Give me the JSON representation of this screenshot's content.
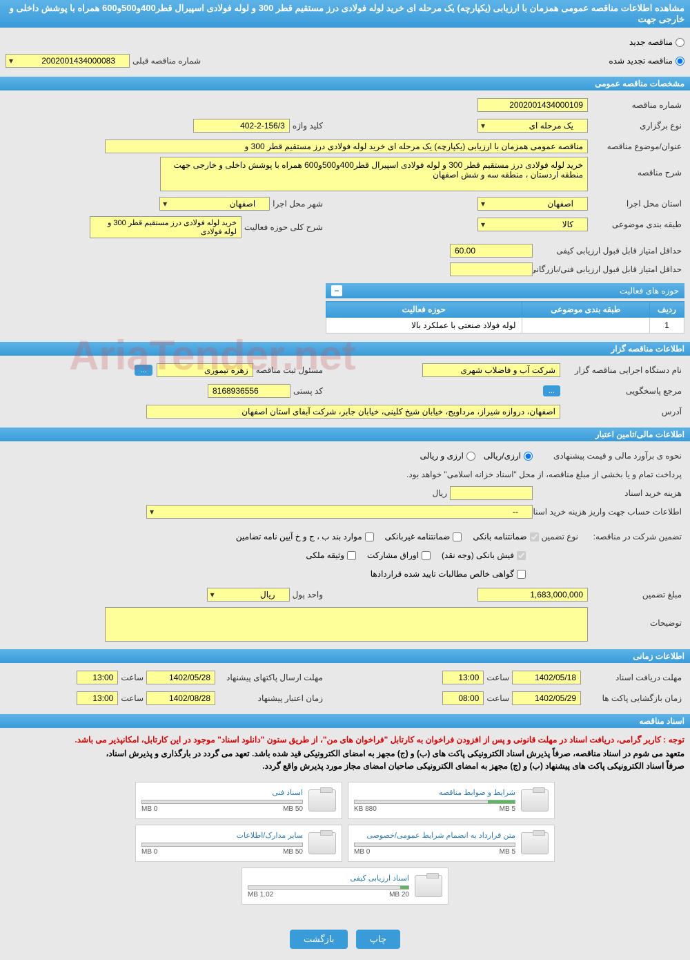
{
  "header": {
    "title": "مشاهده اطلاعات مناقصه عمومی همزمان با ارزیابی (یکپارچه) یک مرحله ای خرید لوله فولادی درز مستقیم قطر 300 و لوله فولادی اسپیرال قطر400و500و600 همراه با پوشش داخلی و خارجی جهت"
  },
  "tender_type": {
    "new_label": "مناقصه جدید",
    "renewed_label": "مناقصه تجدید شده",
    "prev_number_label": "شماره مناقصه قبلی",
    "prev_number": "2002001434000083"
  },
  "general": {
    "section_title": "مشخصات مناقصه عمومی",
    "number_label": "شماره مناقصه",
    "number": "2002001434000109",
    "type_label": "نوع برگزاری",
    "type": "یک مرحله ای",
    "keyword_label": "کلید واژه",
    "keyword": "402-2-156/3",
    "subject_label": "عنوان/موضوع مناقصه",
    "subject": "مناقصه عمومی همزمان با ارزیابی (یکپارچه) یک مرحله ای خرید لوله فولادی درز مستقیم قطر 300 و",
    "desc_label": "شرح مناقصه",
    "desc": "خرید لوله فولادی درز مستقیم قطر 300 و  لوله فولادی اسپیرال قطر400و500و600  همراه با پوشش داخلی و خارجی جهت منطقه اردستان ،  منطقه سه و شش اصفهان",
    "province_label": "استان محل اجرا",
    "province": "اصفهان",
    "city_label": "شهر محل اجرا",
    "city": "اصفهان",
    "category_label": "طبقه بندی موضوعی",
    "category": "کالا",
    "activity_desc_label": "شرح کلی حوزه فعالیت",
    "activity_desc": "خرید لوله فولادی درز مستقیم قطر 300 و  لوله فولادی",
    "min_quality_label": "حداقل امتیاز قابل قبول ارزیابی کیفی",
    "min_quality": "60.00",
    "min_tech_label": "حداقل امتیاز قابل قبول ارزیابی فنی/بازرگانی",
    "min_tech": ""
  },
  "activities": {
    "title": "حوزه های فعالیت",
    "col_row": "ردیف",
    "col_category": "طبقه بندی موضوعی",
    "col_field": "حوزه فعالیت",
    "rows": [
      {
        "n": "1",
        "category": "",
        "field": "لوله فولاد صنعتی با عملکرد بالا"
      }
    ]
  },
  "organizer": {
    "section_title": "اطلاعات مناقصه گزار",
    "org_label": "نام دستگاه اجرایی مناقصه گزار",
    "org": "شرکت آب و فاضلاب شهری",
    "registrar_label": "مسئول ثبت مناقصه",
    "registrar": "زهره تیموری",
    "response_label": "مرجع پاسخگویی",
    "postal_label": "کد پستی",
    "postal": "8168936556",
    "address_label": "آدرس",
    "address": "اصفهان، دروازه شیراز، مرداویج، خیابان شیخ کلینی، خیابان جابر، شرکت آبفای استان اصفهان"
  },
  "financial": {
    "section_title": "اطلاعات مالی/تامین اعتبار",
    "estimate_label": "نحوه ی برآورد مالی و قیمت پیشنهادی",
    "rial_option": "ارزی/ریالی",
    "currency_option": "ارزی و ریالی",
    "treasury_note": "پرداخت تمام و یا بخشی از مبلغ مناقصه، از محل \"اسناد خزانه اسلامی\" خواهد بود.",
    "doc_cost_label": "هزینه خرید اسناد",
    "doc_cost_unit": "ریال",
    "account_label": "اطلاعات حساب جهت واریز هزینه خرید اسناد",
    "account": "--",
    "guarantee_label": "تضمین شرکت در مناقصه:",
    "guarantee_type_label": "نوع تضمین",
    "g_bank": "ضمانتنامه بانکی",
    "g_nonbank": "ضمانتنامه غیربانکی",
    "g_cases": "موارد بند ب ، ج و خ آیین نامه تضامین",
    "g_cash": "فیش بانکی (وجه نقد)",
    "g_securities": "اوراق مشارکت",
    "g_property": "وثیقه ملکی",
    "g_receivables": "گواهی خالص مطالبات تایید شده قراردادها",
    "amount_label": "مبلغ تضمین",
    "amount": "1,683,000,000",
    "currency_label": "واحد پول",
    "currency": "ریال",
    "notes_label": "توضیحات"
  },
  "timing": {
    "section_title": "اطلاعات زمانی",
    "receive_label": "مهلت دریافت اسناد",
    "receive_date": "1402/05/18",
    "receive_time": "13:00",
    "submit_label": "مهلت ارسال پاکتهای پیشنهاد",
    "submit_date": "1402/05/28",
    "submit_time": "13:00",
    "open_label": "زمان بازگشایی پاکت ها",
    "open_date": "1402/05/29",
    "open_time": "08:00",
    "validity_label": "زمان اعتبار پیشنهاد",
    "validity_date": "1402/08/28",
    "validity_time": "13:00",
    "time_label": "ساعت"
  },
  "documents": {
    "section_title": "اسناد مناقصه",
    "warning": "توجه : کاربر گرامی، دریافت اسناد در مهلت قانونی و پس از افزودن فراخوان به کارتابل \"فراخوان های من\"، از طریق ستون \"دانلود اسناد\" موجود در این کارتابل، امکانپذیر می باشد.",
    "commit1": "متعهد می شوم در اسناد مناقصه، صرفاً پذیرش اسناد الکترونیکی پاکت های (ب) و (ج) مجهز به امضای الکترونیکی قید شده باشد. تعهد می گردد در بارگذاری و پذیرش اسناد،",
    "commit2": "صرفاً اسناد الکترونیکی پاکت های پیشنهاد (ب) و (ج) مجهز به امضای الکترونیکی صاحبان امضای مجاز مورد پذیرش واقع گردد.",
    "files": [
      {
        "title": "شرایط و ضوابط مناقصه",
        "used": "880 KB",
        "total": "5 MB",
        "pct": 17
      },
      {
        "title": "اسناد فنی",
        "used": "0 MB",
        "total": "50 MB",
        "pct": 0
      },
      {
        "title": "متن قرارداد به انضمام شرایط عمومی/خصوصی",
        "used": "0 MB",
        "total": "5 MB",
        "pct": 0
      },
      {
        "title": "سایر مدارک/اطلاعات",
        "used": "0 MB",
        "total": "50 MB",
        "pct": 0
      },
      {
        "title": "اسناد ارزیابی کیفی",
        "used": "1.02 MB",
        "total": "20 MB",
        "pct": 5
      }
    ]
  },
  "buttons": {
    "print": "چاپ",
    "back": "بازگشت"
  }
}
